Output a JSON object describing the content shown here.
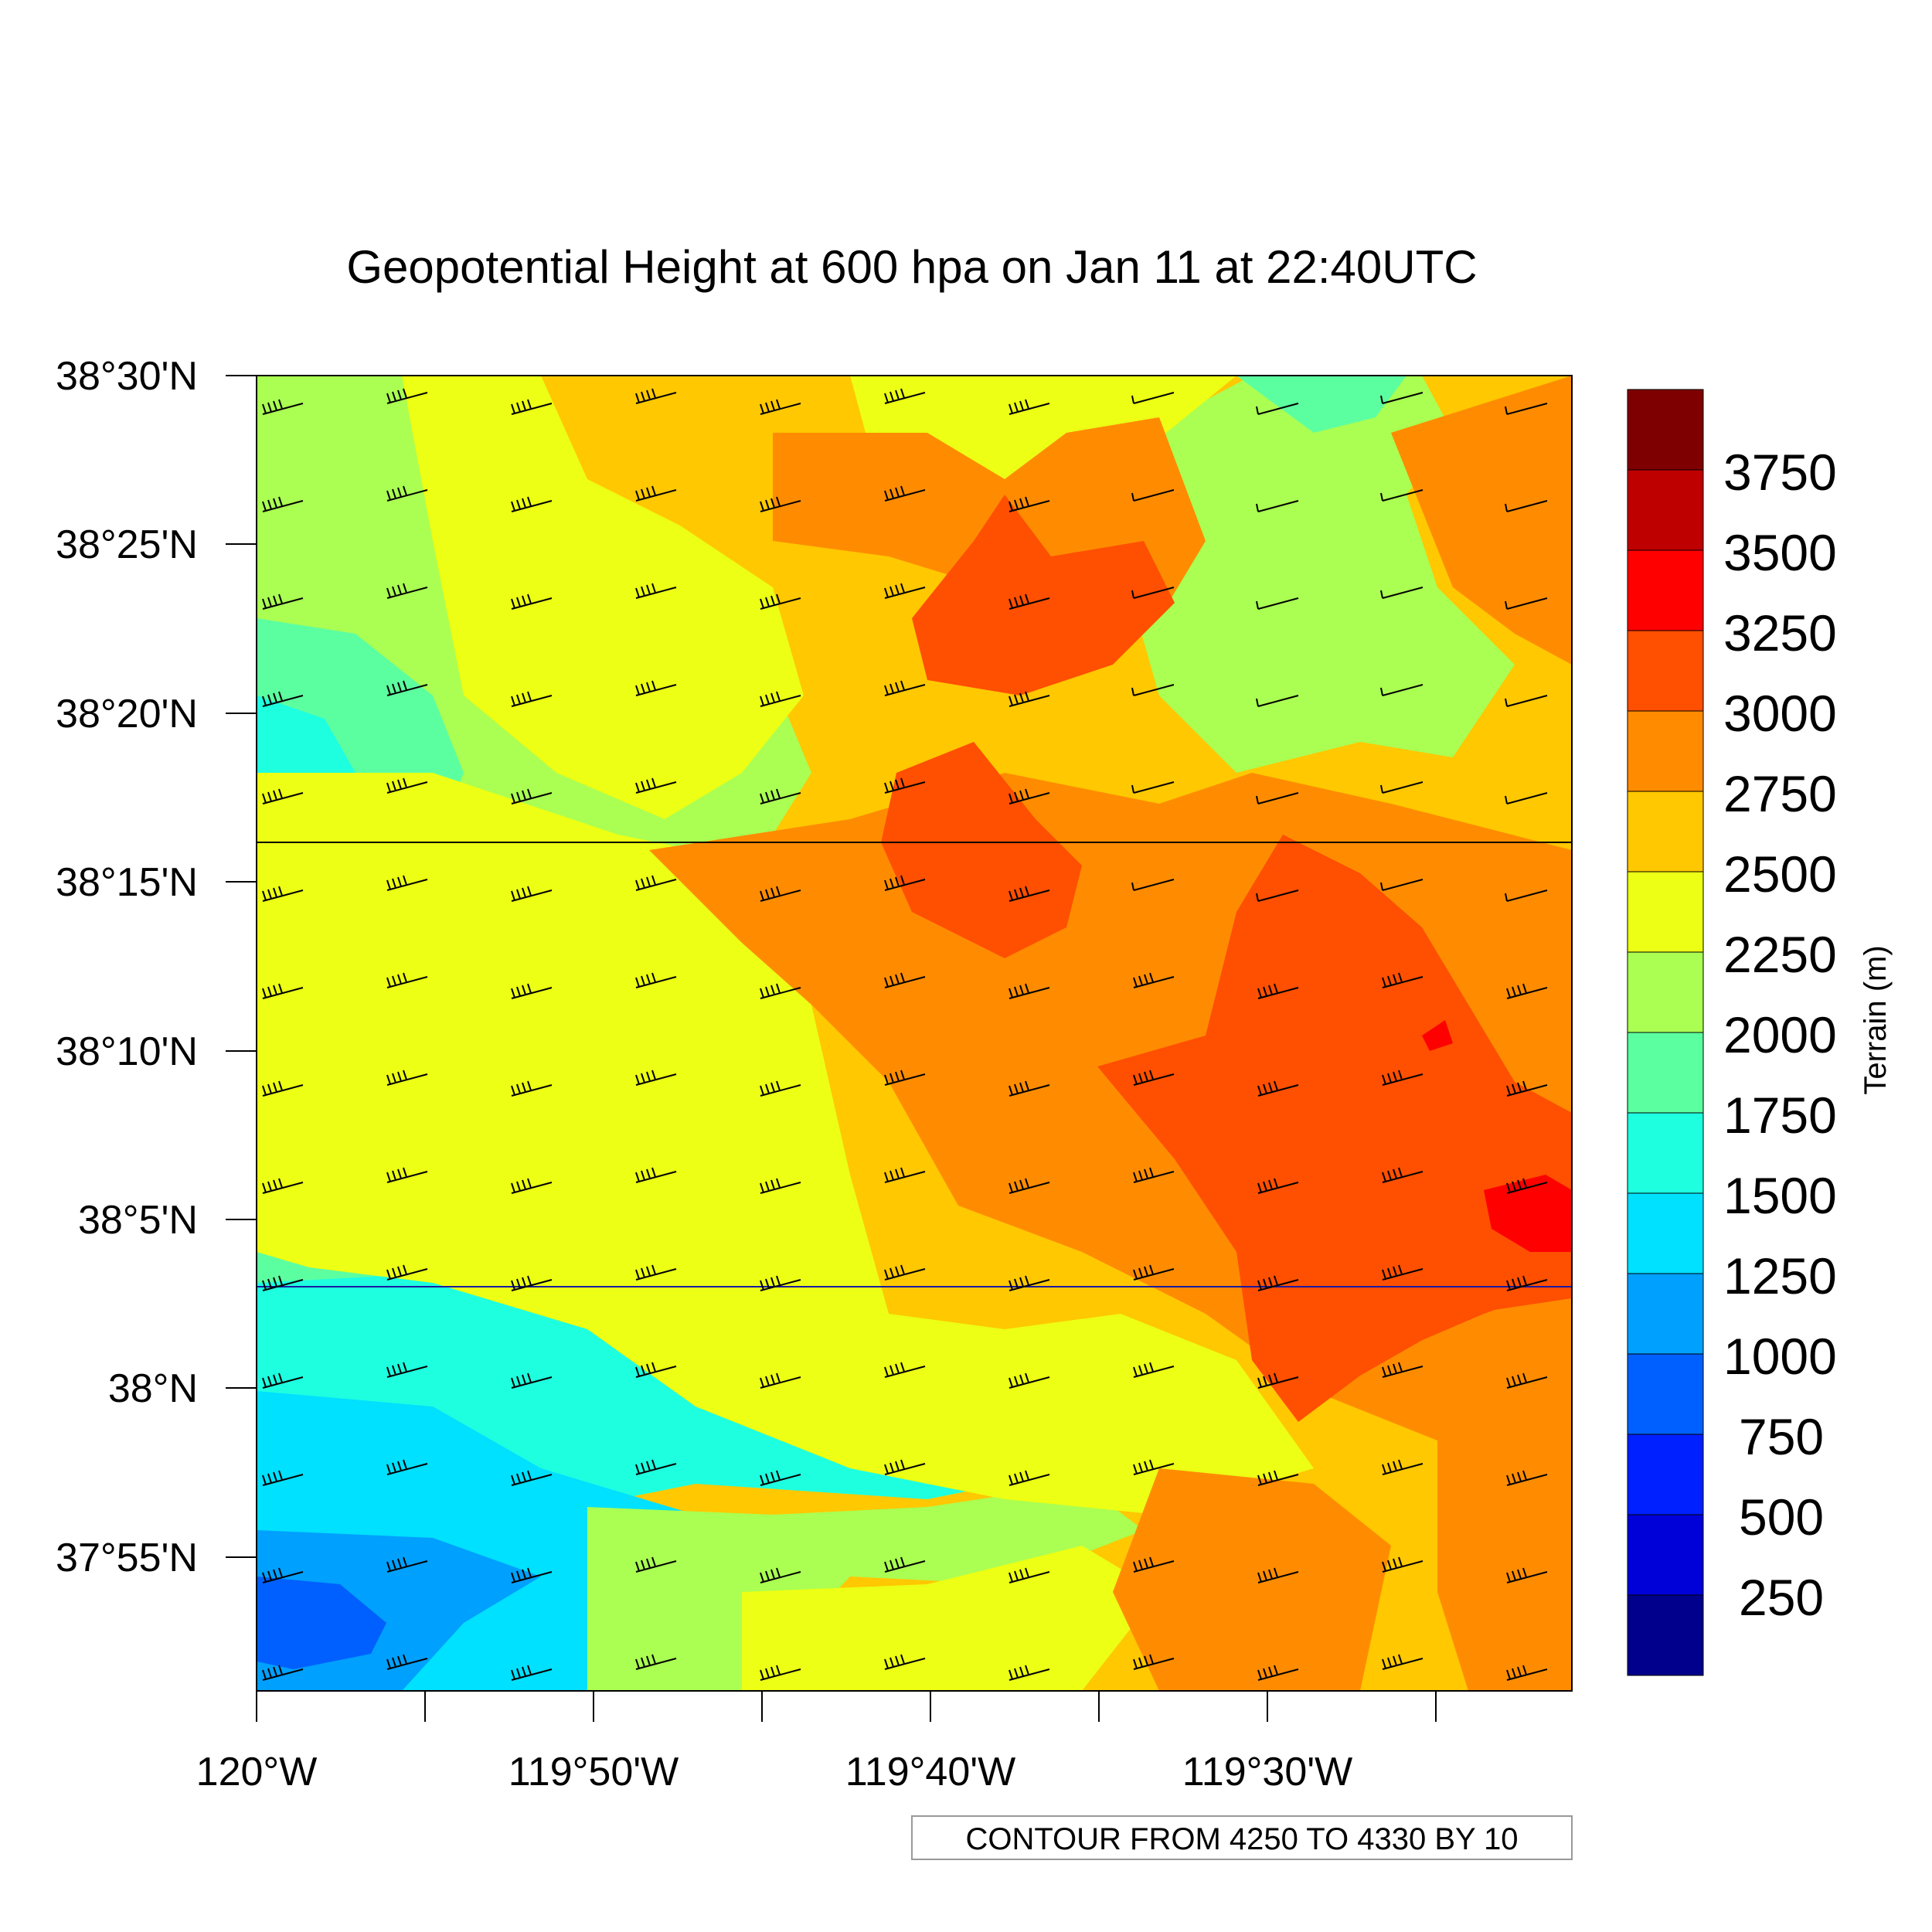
{
  "title": "Geopotential Height at 600 hpa on Jan 11 at 22:40UTC",
  "axes": {
    "y_ticks": [
      "38°30'N",
      "38°25'N",
      "38°20'N",
      "38°15'N",
      "38°10'N",
      "38°5'N",
      "38°N",
      "37°55'N"
    ],
    "x_ticks": [
      "120°W",
      "119°50'W",
      "119°40'W",
      "119°30'W"
    ]
  },
  "colorbar": {
    "title": "Terrain (m)",
    "labels": [
      "3750",
      "3500",
      "3250",
      "3000",
      "2750",
      "2500",
      "2250",
      "2000",
      "1750",
      "1500",
      "1250",
      "1000",
      "750",
      "500",
      "250"
    ],
    "colors": [
      "#7f0000",
      "#bf0000",
      "#ff0000",
      "#ff4f00",
      "#ff8c00",
      "#ffc800",
      "#ecff14",
      "#aaff52",
      "#5cffa0",
      "#1effe0",
      "#00e0ff",
      "#00a0ff",
      "#0060ff",
      "#0020ff",
      "#0000d8",
      "#00008c"
    ]
  },
  "contour_note": "CONTOUR FROM 4250 TO 4330 BY 10",
  "contour_line_colors": [
    "#000000",
    "#1a1aa0"
  ],
  "wind_barb_color": "#000000"
}
